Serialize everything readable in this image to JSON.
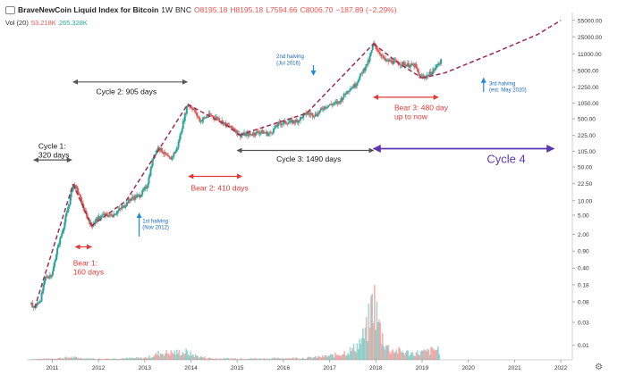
{
  "header": {
    "symbol": "BraveNewCoin Liquid Index for Bitcoin",
    "interval": "1W",
    "exchange": "BNC",
    "o": "O8195.18",
    "h": "H8195.18",
    "l": "L7594.66",
    "c": "C8006.70",
    "change": "−187.89 (−2.29%)",
    "vol_label": "Vol (20)",
    "vol_value_1": "53.218K",
    "vol_value_2": "265.328K",
    "colors": {
      "up": "#26a69a",
      "down": "#ef5350",
      "text": "#222222"
    }
  },
  "icons": {
    "scale": "gear-icon",
    "visibility": "eye-icon"
  },
  "chart_data": {
    "type": "candlestick",
    "title": "BraveNewCoin Liquid Index for Bitcoin",
    "yscale": "log",
    "ylim": [
      0.005,
      80000
    ],
    "xlim": [
      2010.45,
      2022.25
    ],
    "y_ticks": [
      "55000.00",
      "25000.00",
      "11000.00",
      "5000.00",
      "2250.00",
      "1050.00",
      "500.00",
      "225.00",
      "105.00",
      "50.00",
      "22.50",
      "10.00",
      "5.00",
      "2.00",
      "0.90",
      "0.40",
      "0.18",
      "0.08",
      "0.03",
      "0.01"
    ],
    "y_tick_values": [
      55000,
      25000,
      11000,
      5000,
      2250,
      1050,
      500,
      225,
      105,
      50,
      22.5,
      10,
      5,
      2,
      0.9,
      0.4,
      0.18,
      0.08,
      0.03,
      0.01
    ],
    "x_ticks": [
      "2011",
      "2012",
      "2013",
      "2014",
      "2015",
      "2016",
      "2017",
      "2018",
      "2019",
      "2020",
      "2021",
      "2022"
    ],
    "x_tick_values": [
      2011,
      2012,
      2013,
      2014,
      2015,
      2016,
      2017,
      2018,
      2019,
      2020,
      2021,
      2022
    ],
    "price_path": [
      [
        2010.55,
        0.07
      ],
      [
        2010.62,
        0.06
      ],
      [
        2010.75,
        0.09
      ],
      [
        2010.85,
        0.25
      ],
      [
        2011.0,
        0.3
      ],
      [
        2011.1,
        0.9
      ],
      [
        2011.25,
        3
      ],
      [
        2011.38,
        10
      ],
      [
        2011.45,
        22
      ],
      [
        2011.55,
        16
      ],
      [
        2011.7,
        6
      ],
      [
        2011.85,
        3
      ],
      [
        2011.95,
        4
      ],
      [
        2012.1,
        5
      ],
      [
        2012.3,
        5
      ],
      [
        2012.5,
        7
      ],
      [
        2012.7,
        11
      ],
      [
        2012.9,
        13
      ],
      [
        2013.05,
        20
      ],
      [
        2013.2,
        90
      ],
      [
        2013.3,
        130
      ],
      [
        2013.4,
        100
      ],
      [
        2013.55,
        70
      ],
      [
        2013.7,
        120
      ],
      [
        2013.85,
        500
      ],
      [
        2013.93,
        1000
      ],
      [
        2014.05,
        800
      ],
      [
        2014.2,
        450
      ],
      [
        2014.4,
        600
      ],
      [
        2014.6,
        500
      ],
      [
        2014.8,
        350
      ],
      [
        2014.95,
        300
      ],
      [
        2015.05,
        230
      ],
      [
        2015.3,
        240
      ],
      [
        2015.5,
        270
      ],
      [
        2015.7,
        240
      ],
      [
        2015.9,
        400
      ],
      [
        2016.05,
        420
      ],
      [
        2016.3,
        450
      ],
      [
        2016.5,
        650
      ],
      [
        2016.7,
        600
      ],
      [
        2016.9,
        900
      ],
      [
        2017.05,
        1000
      ],
      [
        2017.2,
        1100
      ],
      [
        2017.4,
        2000
      ],
      [
        2017.55,
        2500
      ],
      [
        2017.7,
        4500
      ],
      [
        2017.85,
        8000
      ],
      [
        2017.95,
        18000
      ],
      [
        2018.05,
        13000
      ],
      [
        2018.2,
        8000
      ],
      [
        2018.4,
        7500
      ],
      [
        2018.55,
        7000
      ],
      [
        2018.7,
        6500
      ],
      [
        2018.85,
        6300
      ],
      [
        2018.95,
        3700
      ],
      [
        2019.1,
        3800
      ],
      [
        2019.25,
        5000
      ],
      [
        2019.35,
        7000
      ],
      [
        2019.42,
        8000
      ]
    ],
    "volume_path": [
      [
        2010.55,
        0.5
      ],
      [
        2011.4,
        2
      ],
      [
        2012.0,
        0.8
      ],
      [
        2013.0,
        1.5
      ],
      [
        2013.3,
        5
      ],
      [
        2013.9,
        6
      ],
      [
        2014.5,
        1
      ],
      [
        2015.5,
        1
      ],
      [
        2016.5,
        1.5
      ],
      [
        2017.0,
        3
      ],
      [
        2017.5,
        8
      ],
      [
        2017.8,
        22
      ],
      [
        2017.95,
        50
      ],
      [
        2018.05,
        30
      ],
      [
        2018.3,
        8
      ],
      [
        2018.8,
        5
      ],
      [
        2019.1,
        6
      ],
      [
        2019.4,
        9
      ]
    ],
    "trend_lines": [
      {
        "name": "cycle-1-dashed",
        "points": [
          [
            2010.62,
            0.06
          ],
          [
            2011.45,
            22
          ]
        ]
      },
      {
        "name": "bear-1-dashed",
        "points": [
          [
            2011.45,
            22
          ],
          [
            2011.85,
            3
          ]
        ]
      },
      {
        "name": "cycle-2-dashed",
        "points": [
          [
            2011.85,
            3
          ],
          [
            2012.6,
            10
          ],
          [
            2013.93,
            1000
          ]
        ]
      },
      {
        "name": "bear-2-dashed",
        "points": [
          [
            2013.93,
            1000
          ],
          [
            2014.8,
            350
          ],
          [
            2015.05,
            230
          ]
        ]
      },
      {
        "name": "cycle-3-dashed",
        "points": [
          [
            2015.05,
            230
          ],
          [
            2016.5,
            650
          ],
          [
            2017.95,
            18000
          ]
        ]
      },
      {
        "name": "bear-3-dashed",
        "points": [
          [
            2017.95,
            18000
          ],
          [
            2018.5,
            7000
          ],
          [
            2019.0,
            3500
          ]
        ]
      },
      {
        "name": "projection-dashed",
        "points": [
          [
            2019.0,
            3500
          ],
          [
            2019.5,
            4500
          ],
          [
            2020.5,
            11000
          ],
          [
            2021.5,
            28000
          ],
          [
            2022.0,
            55000
          ]
        ]
      }
    ],
    "annotations": [
      {
        "name": "cycle-1-label",
        "lines": [
          "Cycle 1:",
          "320 days"
        ],
        "x": 2010.7,
        "y": 120,
        "color": "#111111",
        "size": 8.5
      },
      {
        "name": "bear-1-label",
        "lines": [
          "Bear 1:",
          "160 days"
        ],
        "x": 2011.45,
        "y": 0.45,
        "color": "#e53935",
        "size": 8.5
      },
      {
        "name": "cycle-2-label",
        "lines": [
          "Cycle 2: 905 days"
        ],
        "x": 2011.95,
        "y": 1600,
        "color": "#111111",
        "size": 8.5
      },
      {
        "name": "first-halving-label",
        "lines": [
          "1st halving",
          "(Nov 2012)"
        ],
        "x": 2012.95,
        "y": 3.5,
        "color": "#1565c0",
        "size": 6
      },
      {
        "name": "bear-2-label",
        "lines": [
          "Bear 2: 410 days"
        ],
        "x": 2014.0,
        "y": 16,
        "color": "#e53935",
        "size": 8.5
      },
      {
        "name": "second-halving-label",
        "lines": [
          "2nd halving",
          "(Jul 2016)"
        ],
        "x": 2015.85,
        "y": 9000,
        "color": "#1565c0",
        "size": 6
      },
      {
        "name": "cycle-3-label",
        "lines": [
          "Cycle 3: 1490  days"
        ],
        "x": 2015.85,
        "y": 65,
        "color": "#111111",
        "size": 8.5
      },
      {
        "name": "bear-3-label",
        "lines": [
          "Bear 3: 480 day",
          "up to now"
        ],
        "x": 2018.4,
        "y": 750,
        "color": "#e53935",
        "size": 8.5
      },
      {
        "name": "cycle-4-label",
        "lines": [
          "Cycle 4"
        ],
        "x": 2020.4,
        "y": 60,
        "color": "#5e35b1",
        "size": 13
      },
      {
        "name": "third-halving-label",
        "lines": [
          "3rd halving",
          "(est. May 2020)"
        ],
        "x": 2020.45,
        "y": 2500,
        "color": "#1565c0",
        "size": 6
      }
    ],
    "arrows": [
      {
        "name": "cycle-1-arrow",
        "from": [
          2010.6,
          70
        ],
        "to": [
          2011.42,
          70
        ],
        "color": "#555555",
        "both": true
      },
      {
        "name": "bear-1-arrow",
        "from": [
          2011.5,
          1.1
        ],
        "to": [
          2011.85,
          1.1
        ],
        "color": "#e53935",
        "both": true
      },
      {
        "name": "cycle-2-arrow",
        "from": [
          2011.45,
          2900
        ],
        "to": [
          2013.92,
          2900
        ],
        "color": "#555555",
        "both": true
      },
      {
        "name": "bear-2-arrow",
        "from": [
          2013.95,
          32
        ],
        "to": [
          2015.1,
          32
        ],
        "color": "#e53935",
        "both": true
      },
      {
        "name": "cycle-3-arrow",
        "from": [
          2015.0,
          110
        ],
        "to": [
          2017.95,
          110
        ],
        "color": "#555555",
        "both": true
      },
      {
        "name": "bear-3-arrow",
        "from": [
          2017.95,
          1400
        ],
        "to": [
          2019.35,
          1400
        ],
        "color": "#e53935",
        "both": true
      },
      {
        "name": "cycle-4-arrow",
        "from": [
          2017.95,
          120
        ],
        "to": [
          2021.85,
          120
        ],
        "color": "#5e35b1",
        "both": true
      },
      {
        "name": "first-halving-arrow",
        "from": [
          2012.88,
          1.8
        ],
        "to": [
          2012.88,
          5.5
        ],
        "color": "#1e88e5",
        "both": false
      },
      {
        "name": "second-halving-arrow",
        "from": [
          2016.65,
          6500
        ],
        "to": [
          2016.65,
          4000
        ],
        "color": "#1e88e5",
        "both": false
      },
      {
        "name": "third-halving-arrow",
        "from": [
          2020.33,
          1800
        ],
        "to": [
          2020.33,
          3500
        ],
        "color": "#1e88e5",
        "both": false
      }
    ],
    "grid": false,
    "legend": "top-left"
  }
}
